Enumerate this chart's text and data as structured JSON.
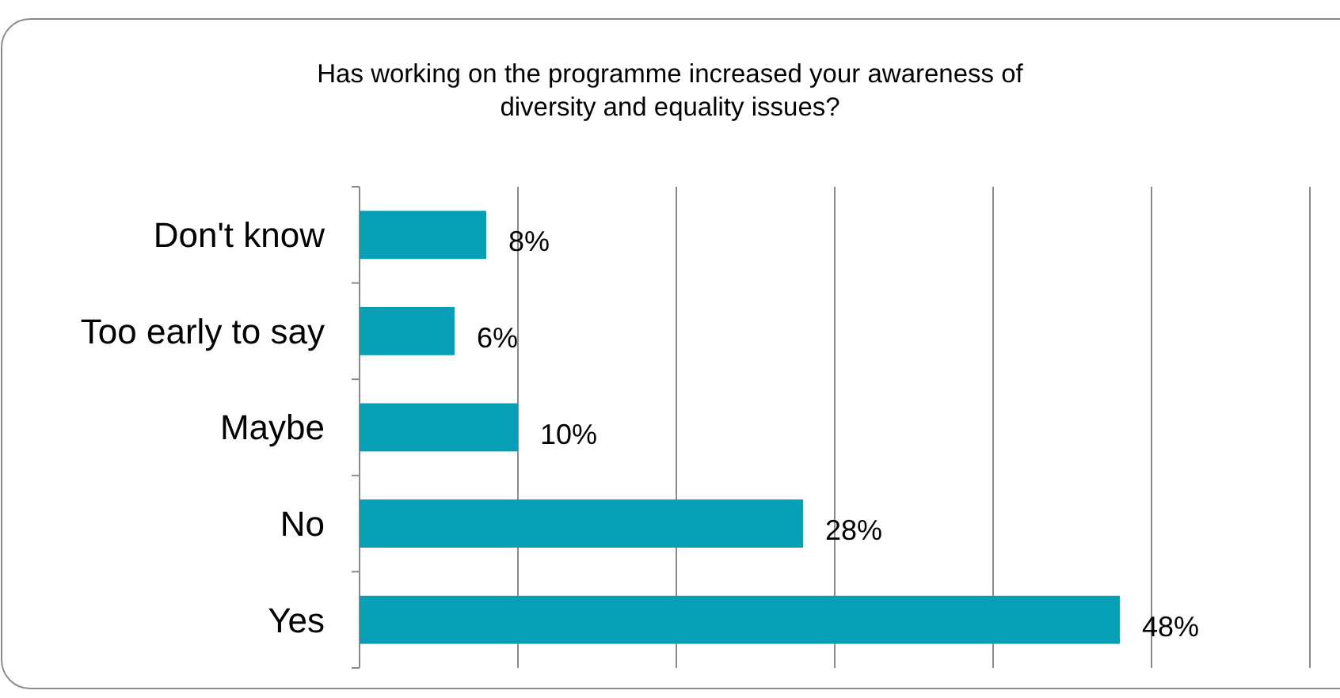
{
  "chart_data": {
    "type": "bar",
    "orientation": "horizontal",
    "title": "Has working on the programme increased your awareness of diversity and equality issues?",
    "categories": [
      "Don't know",
      "Too early to say",
      "Maybe",
      "No",
      "Yes"
    ],
    "values": [
      8,
      6,
      10,
      28,
      48
    ],
    "color": "#069fb6",
    "xlim": [
      0,
      60
    ],
    "xticks": [
      {
        "value": 0,
        "label": null
      },
      {
        "value": 10,
        "label": null
      },
      {
        "value": 20,
        "label": null
      },
      {
        "value": 30,
        "label": null
      },
      {
        "value": 40,
        "label": null
      },
      {
        "value": 50,
        "label": null
      },
      {
        "value": 60,
        "label": null
      }
    ],
    "value_labels": [
      "8%",
      "6%",
      "10%",
      "28%",
      "48%"
    ],
    "grid": "x",
    "tick_labels": "y"
  }
}
